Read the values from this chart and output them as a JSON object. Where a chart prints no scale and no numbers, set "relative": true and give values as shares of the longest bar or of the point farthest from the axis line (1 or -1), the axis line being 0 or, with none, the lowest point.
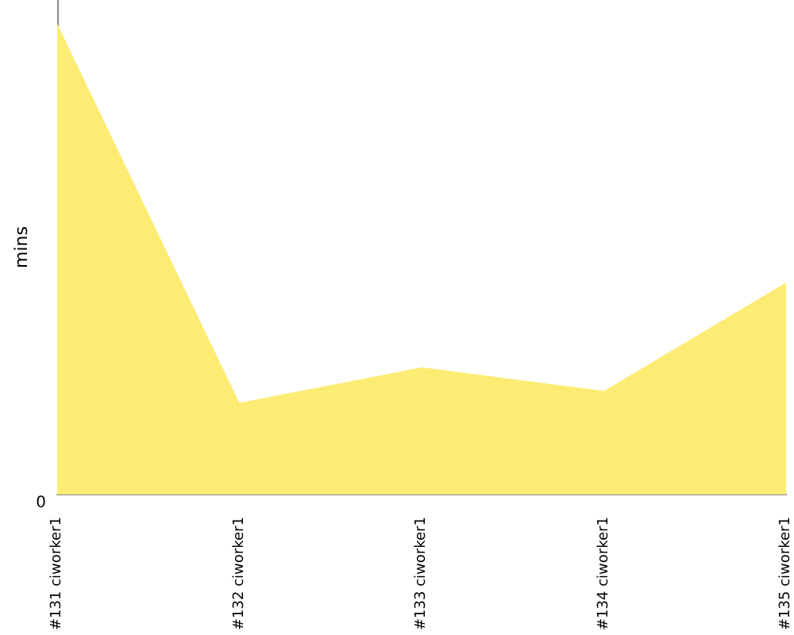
{
  "chart_data": {
    "type": "area",
    "ylabel": "mins",
    "relative": true,
    "categories": [
      "#131 ciworker1",
      "#132 ciworker1",
      "#133 ciworker1",
      "#134 ciworker1",
      "#135 ciworker1"
    ],
    "series": [
      {
        "color": "#fdec73",
        "values": [
          1,
          0.195,
          0.27,
          0.22,
          0.45
        ]
      }
    ],
    "annotations": [
      "0"
    ],
    "grid": false,
    "marker": "none"
  }
}
